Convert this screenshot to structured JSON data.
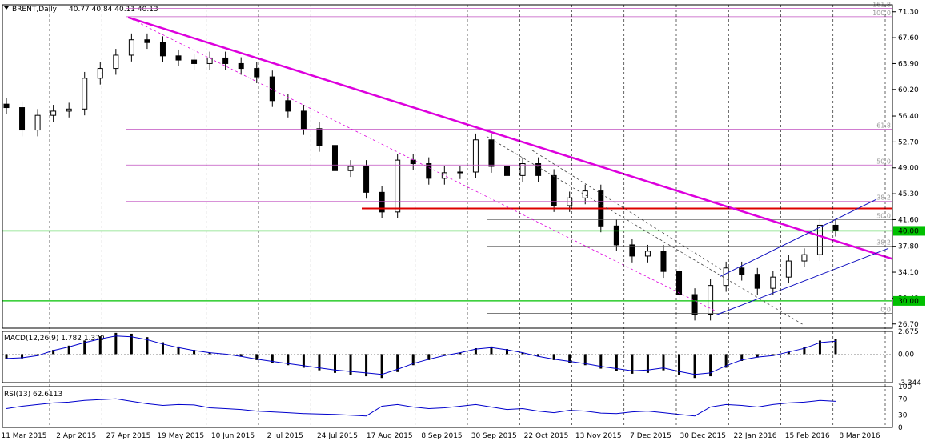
{
  "header": {
    "symbol_label": "BRENT,Daily",
    "ohlc": "40.77 40.84 40.11 40.13"
  },
  "colors": {
    "background": "#ffffff",
    "axis": "#000000",
    "grid": "#000000",
    "candle": "#000000",
    "trendline": "#dd00dd",
    "fib": "#c050c0",
    "support": "#00c000",
    "resistance": "#dd0000",
    "channel": "#1010c0",
    "macd_line": "#0000cc",
    "price_tag_bg": "#00c000",
    "price_tag_text": "#ffffff"
  },
  "chart_data": [
    {
      "type": "candlestick",
      "title": "BRENT,Daily",
      "ylim": [
        26.1,
        72.3
      ],
      "yticks": [
        "71.30",
        "67.60",
        "63.90",
        "60.20",
        "56.40",
        "52.70",
        "49.00",
        "45.30",
        "41.60",
        "37.80",
        "34.10",
        "30.40",
        "26.70"
      ],
      "xticks": [
        "11 Mar 2015",
        "2 Apr 2015",
        "27 Apr 2015",
        "19 May 2015",
        "10 Jun 2015",
        "2 Jul 2015",
        "24 Jul 2015",
        "17 Aug 2015",
        "8 Sep 2015",
        "30 Sep 2015",
        "22 Oct 2015",
        "13 Nov 2015",
        "7 Dec 2015",
        "30 Dec 2015",
        "22 Jan 2016",
        "15 Feb 2016",
        "8 Mar 2016"
      ],
      "close_series": [
        {
          "date": "11 Mar 2015",
          "close": 57.6
        },
        {
          "date": "18 Mar 2015",
          "close": 54.4
        },
        {
          "date": "25 Mar 2015",
          "close": 56.5
        },
        {
          "date": "2 Apr 2015",
          "close": 57.1
        },
        {
          "date": "9 Apr 2015",
          "close": 57.4
        },
        {
          "date": "16 Apr 2015",
          "close": 61.8
        },
        {
          "date": "22 Apr 2015",
          "close": 63.2
        },
        {
          "date": "27 Apr 2015",
          "close": 65.1
        },
        {
          "date": "5 May 2015",
          "close": 67.3
        },
        {
          "date": "12 May 2015",
          "close": 66.9
        },
        {
          "date": "19 May 2015",
          "close": 65.0
        },
        {
          "date": "26 May 2015",
          "close": 64.4
        },
        {
          "date": "3 Jun 2015",
          "close": 63.9
        },
        {
          "date": "10 Jun 2015",
          "close": 64.7
        },
        {
          "date": "17 Jun 2015",
          "close": 63.9
        },
        {
          "date": "24 Jun 2015",
          "close": 63.2
        },
        {
          "date": "2 Jul 2015",
          "close": 62.0
        },
        {
          "date": "9 Jul 2015",
          "close": 58.6
        },
        {
          "date": "16 Jul 2015",
          "close": 57.1
        },
        {
          "date": "24 Jul 2015",
          "close": 54.6
        },
        {
          "date": "31 Jul 2015",
          "close": 52.2
        },
        {
          "date": "7 Aug 2015",
          "close": 48.6
        },
        {
          "date": "13 Aug 2015",
          "close": 49.2
        },
        {
          "date": "17 Aug 2015",
          "close": 45.5
        },
        {
          "date": "24 Aug 2015",
          "close": 42.7
        },
        {
          "date": "28 Aug 2015",
          "close": 50.1
        },
        {
          "date": "8 Sep 2015",
          "close": 49.6
        },
        {
          "date": "15 Sep 2015",
          "close": 47.5
        },
        {
          "date": "22 Sep 2015",
          "close": 48.3
        },
        {
          "date": "30 Sep 2015",
          "close": 48.4
        },
        {
          "date": "7 Oct 2015",
          "close": 53.0
        },
        {
          "date": "14 Oct 2015",
          "close": 49.2
        },
        {
          "date": "22 Oct 2015",
          "close": 47.9
        },
        {
          "date": "29 Oct 2015",
          "close": 49.6
        },
        {
          "date": "5 Nov 2015",
          "close": 47.9
        },
        {
          "date": "13 Nov 2015",
          "close": 43.6
        },
        {
          "date": "20 Nov 2015",
          "close": 44.7
        },
        {
          "date": "27 Nov 2015",
          "close": 45.7
        },
        {
          "date": "7 Dec 2015",
          "close": 40.7
        },
        {
          "date": "14 Dec 2015",
          "close": 38.0
        },
        {
          "date": "21 Dec 2015",
          "close": 36.4
        },
        {
          "date": "30 Dec 2015",
          "close": 37.1
        },
        {
          "date": "6 Jan 2016",
          "close": 34.2
        },
        {
          "date": "13 Jan 2016",
          "close": 30.9
        },
        {
          "date": "20 Jan 2016",
          "close": 28.1
        },
        {
          "date": "22 Jan 2016",
          "close": 32.2
        },
        {
          "date": "29 Jan 2016",
          "close": 34.7
        },
        {
          "date": "5 Feb 2016",
          "close": 33.8
        },
        {
          "date": "11 Feb 2016",
          "close": 31.8
        },
        {
          "date": "15 Feb 2016",
          "close": 33.4
        },
        {
          "date": "22 Feb 2016",
          "close": 35.7
        },
        {
          "date": "29 Feb 2016",
          "close": 36.6
        },
        {
          "date": "8 Mar 2016",
          "close": 40.8
        },
        {
          "date": "11 Mar 2016",
          "close": 40.1
        }
      ],
      "horizontal_levels": [
        {
          "label": "40.00",
          "value": 40.0,
          "color": "support"
        },
        {
          "label": "30.00",
          "value": 30.0,
          "color": "support"
        },
        {
          "label": "",
          "value": 43.2,
          "color": "resistance"
        }
      ],
      "fibonacci_1": {
        "levels": [
          {
            "label": "161.8",
            "value": 71.8
          },
          {
            "label": "100.0",
            "value": 70.6
          },
          {
            "label": "61.8",
            "value": 54.5
          },
          {
            "label": "50.0",
            "value": 49.4
          },
          {
            "label": "38.2",
            "value": 44.2
          }
        ]
      },
      "fibonacci_2": {
        "levels": [
          {
            "label": "50.0",
            "value": 41.6
          },
          {
            "label": "38.2",
            "value": 37.8
          },
          {
            "label": "0.0",
            "value": 28.2
          }
        ]
      },
      "price_tags": [
        {
          "value": 40.0,
          "label": "40.00"
        },
        {
          "value": 30.0,
          "label": "30.00"
        }
      ]
    },
    {
      "type": "histogram",
      "title": "MACD(12,26,9) 1.782 1.370",
      "ylim": [
        -3.344,
        2.675
      ],
      "yticks": [
        "2.675",
        "0.00",
        "-3.344"
      ],
      "values": [
        -0.6,
        -0.5,
        -0.2,
        0.5,
        1.0,
        1.6,
        2.1,
        2.5,
        2.4,
        2.0,
        1.4,
        0.9,
        0.5,
        0.2,
        0.0,
        -0.3,
        -0.7,
        -1.0,
        -1.3,
        -1.6,
        -1.9,
        -2.2,
        -2.4,
        -2.6,
        -2.8,
        -2.1,
        -1.3,
        -0.7,
        -0.2,
        0.2,
        0.7,
        0.9,
        0.6,
        0.2,
        -0.3,
        -0.7,
        -1.0,
        -1.3,
        -1.7,
        -2.0,
        -2.3,
        -2.2,
        -1.9,
        -2.4,
        -2.8,
        -2.6,
        -1.6,
        -0.8,
        -0.4,
        -0.2,
        0.3,
        0.8,
        1.6,
        1.8
      ]
    },
    {
      "type": "line",
      "title": "RSI(13) 62.6113",
      "ylim": [
        0,
        100
      ],
      "yticks": [
        "100",
        "70",
        "30",
        "0"
      ],
      "levels": [
        70,
        30
      ],
      "values": [
        46,
        52,
        56,
        60,
        62,
        66,
        68,
        70,
        64,
        58,
        54,
        56,
        55,
        48,
        46,
        44,
        40,
        38,
        36,
        34,
        33,
        32,
        30,
        28,
        52,
        56,
        50,
        46,
        48,
        52,
        56,
        50,
        44,
        46,
        40,
        36,
        42,
        40,
        35,
        34,
        38,
        40,
        36,
        32,
        28,
        50,
        56,
        54,
        50,
        56,
        60,
        62,
        66,
        64
      ]
    }
  ]
}
